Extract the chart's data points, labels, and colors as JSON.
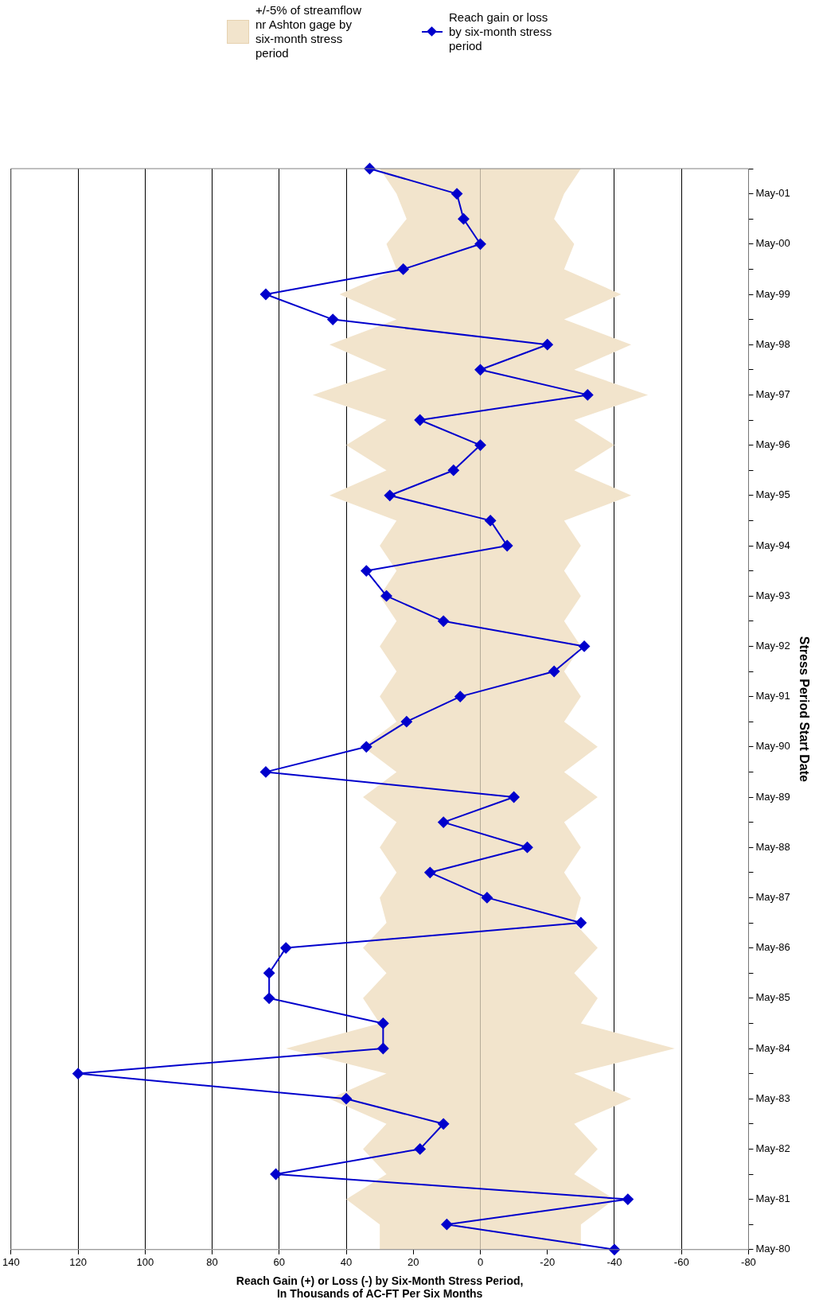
{
  "chart_data": {
    "type": "line",
    "orientation": "horizontal",
    "xlabel": "Reach Gain (+) or Loss (-) by Six-Month Stress Period,\nIn Thousands of AC-FT Per Six Months",
    "ylabel": "Stress Period Start Date",
    "categories": [
      null,
      "May-01",
      null,
      "May-00",
      null,
      "May-99",
      null,
      "May-98",
      null,
      "May-97",
      null,
      "May-96",
      null,
      "May-95",
      null,
      "May-94",
      null,
      "May-93",
      null,
      "May-92",
      null,
      "May-91",
      null,
      "May-90",
      null,
      "May-89",
      null,
      "May-88",
      null,
      "May-87",
      null,
      "May-86",
      null,
      "May-85",
      null,
      "May-84",
      null,
      "May-83",
      null,
      "May-82",
      null,
      "May-81",
      null,
      "May-80"
    ],
    "series": [
      {
        "name": "+/-5% of streamflow nr Ashton gage by six-month stress period",
        "type": "area",
        "color": "#f2e4cc",
        "values": [
          30,
          25,
          22,
          28,
          25,
          42,
          25,
          45,
          28,
          50,
          28,
          40,
          28,
          45,
          25,
          30,
          25,
          30,
          25,
          30,
          25,
          30,
          25,
          35,
          25,
          35,
          25,
          30,
          25,
          30,
          28,
          35,
          28,
          35,
          30,
          58,
          28,
          45,
          28,
          35,
          28,
          40,
          30,
          30
        ]
      },
      {
        "type": "area",
        "color": "#f2e4cc",
        "values": [
          -30,
          -25,
          -22,
          -28,
          -25,
          -42,
          -25,
          -45,
          -28,
          -50,
          -28,
          -40,
          -28,
          -45,
          -25,
          -30,
          -25,
          -30,
          -25,
          -30,
          -25,
          -30,
          -25,
          -35,
          -25,
          -35,
          -25,
          -30,
          -25,
          -30,
          -28,
          -35,
          -28,
          -35,
          -30,
          -58,
          -28,
          -45,
          -28,
          -35,
          -28,
          -40,
          -30,
          -30
        ]
      },
      {
        "name": "Reach gain or loss by six-month stress period",
        "type": "line",
        "color": "#0000cc",
        "marker": "diamond",
        "values": [
          33,
          7,
          5,
          0,
          23,
          64,
          44,
          -20,
          0,
          -32,
          18,
          0,
          8,
          27,
          -3,
          -8,
          34,
          28,
          11,
          -31,
          -22,
          6,
          22,
          34,
          64,
          -10,
          11,
          -14,
          15,
          -2,
          -30,
          58,
          63,
          63,
          29,
          29,
          120,
          40,
          11,
          18,
          61,
          -44,
          10,
          -40
        ]
      }
    ],
    "xlim": [
      140,
      -80
    ],
    "xticks": [
      140,
      120,
      100,
      80,
      60,
      40,
      20,
      0,
      -20,
      -40,
      -60,
      -80
    ],
    "grid": "x",
    "legend": "top",
    "line_style": "solid"
  }
}
